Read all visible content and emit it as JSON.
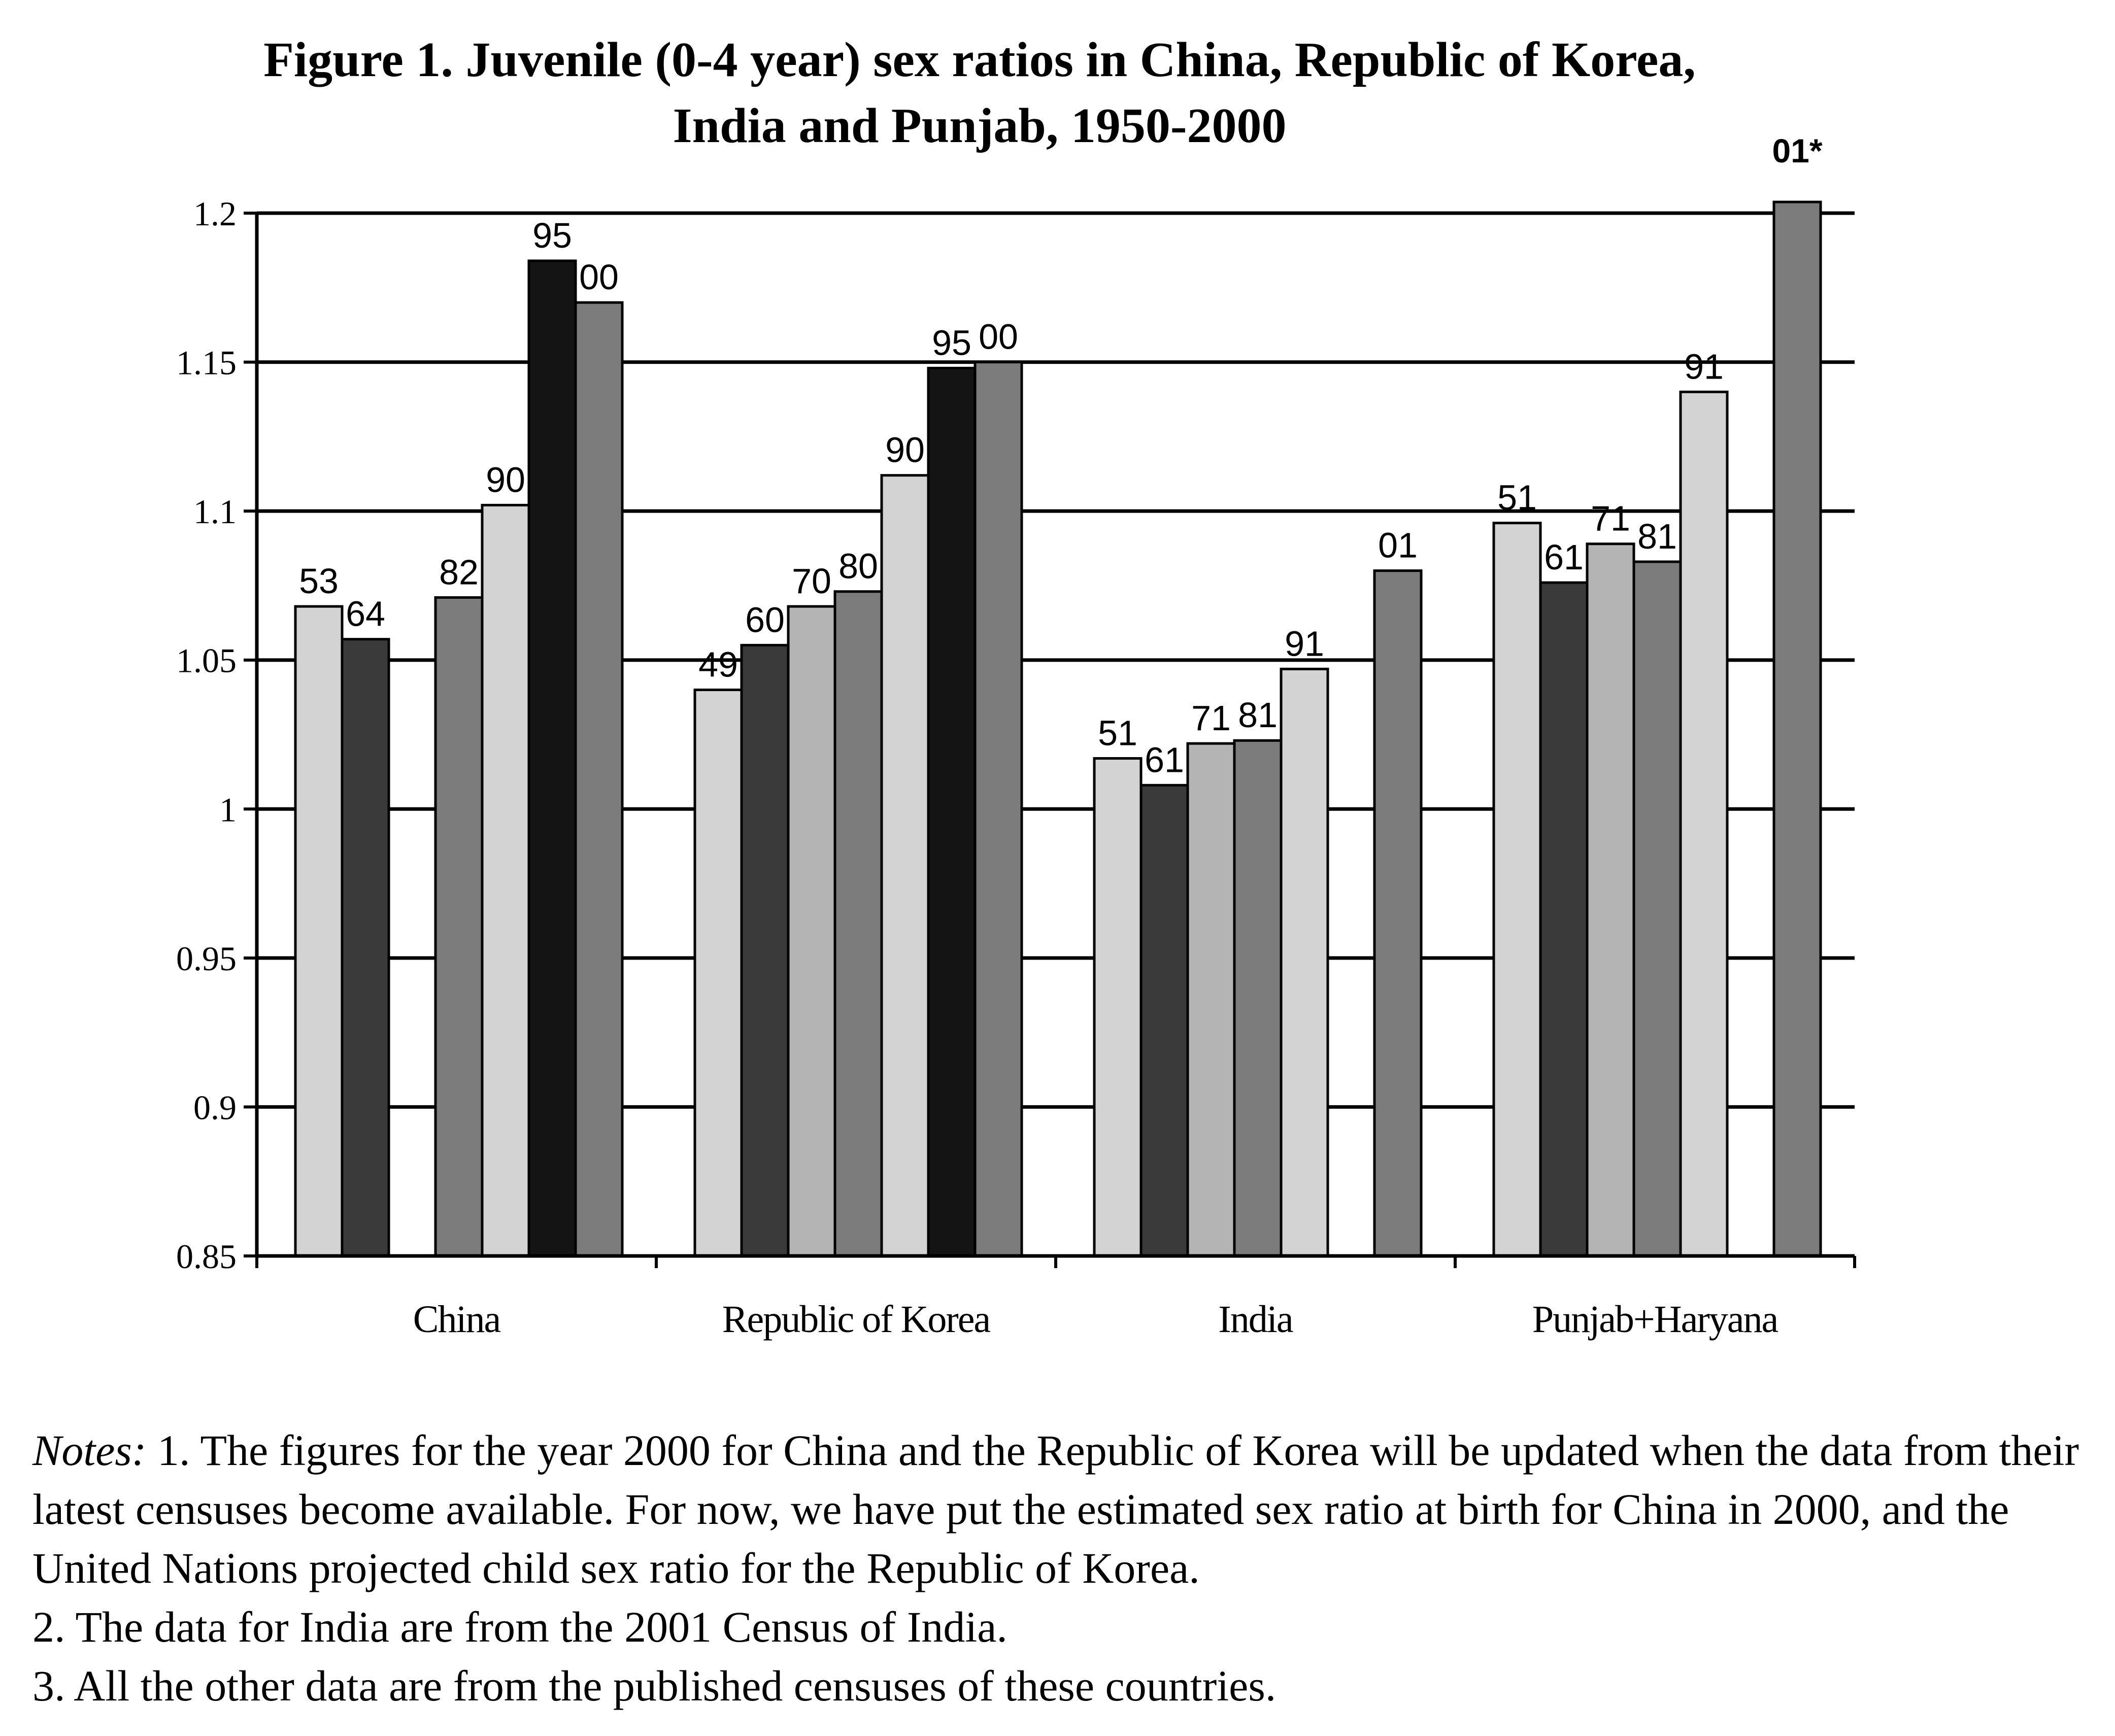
{
  "chart_data": {
    "type": "bar",
    "title_line1": "Figure 1.  Juvenile (0-4 year) sex ratios in China, Republic of Korea,",
    "title_line2": "India and Punjab, 1950-2000",
    "xlabel": "",
    "ylabel": "",
    "ylim": [
      0.85,
      1.2
    ],
    "yticks": [
      "1.2",
      "1.15",
      "1.1",
      "1.05",
      "1",
      "0.95",
      "0.9",
      "0.85"
    ],
    "ytick_values": [
      1.2,
      1.15,
      1.1,
      1.05,
      1.0,
      0.95,
      0.9,
      0.85
    ],
    "grid": true,
    "legend": "none",
    "groups": [
      {
        "category": "China",
        "bars": [
          {
            "label": "53",
            "value": 1.068,
            "color": "#d3d3d3"
          },
          {
            "label": "64",
            "value": 1.057,
            "color": "#3a3a3a"
          },
          {
            "label": "",
            "value": null,
            "color": null
          },
          {
            "label": "82",
            "value": 1.071,
            "color": "#7b7b7b"
          },
          {
            "label": "90",
            "value": 1.102,
            "color": "#d3d3d3"
          },
          {
            "label": "95",
            "value": 1.184,
            "color": "#141414"
          },
          {
            "label": "00",
            "value": 1.17,
            "color": "#7b7b7b"
          }
        ]
      },
      {
        "category": "Republic of Korea",
        "bars": [
          {
            "label": "49",
            "value": 1.04,
            "color": "#d3d3d3"
          },
          {
            "label": "60",
            "value": 1.055,
            "color": "#3a3a3a"
          },
          {
            "label": "70",
            "value": 1.068,
            "color": "#b4b4b4"
          },
          {
            "label": "80",
            "value": 1.073,
            "color": "#7b7b7b"
          },
          {
            "label": "90",
            "value": 1.112,
            "color": "#d3d3d3"
          },
          {
            "label": "95",
            "value": 1.148,
            "color": "#141414"
          },
          {
            "label": "00",
            "value": 1.15,
            "color": "#7b7b7b"
          }
        ]
      },
      {
        "category": "India",
        "bars": [
          {
            "label": "51",
            "value": 1.017,
            "color": "#d3d3d3"
          },
          {
            "label": "61",
            "value": 1.008,
            "color": "#3a3a3a"
          },
          {
            "label": "71",
            "value": 1.022,
            "color": "#b4b4b4"
          },
          {
            "label": "81",
            "value": 1.023,
            "color": "#7b7b7b"
          },
          {
            "label": "91",
            "value": 1.047,
            "color": "#d3d3d3"
          },
          {
            "label": "",
            "value": null,
            "color": null
          },
          {
            "label": "01",
            "value": 1.08,
            "color": "#7b7b7b"
          }
        ]
      },
      {
        "category": "Punjab+Haryana",
        "bars": [
          {
            "label": "51",
            "value": 1.096,
            "color": "#d3d3d3"
          },
          {
            "label": "61",
            "value": 1.076,
            "color": "#3a3a3a"
          },
          {
            "label": "71",
            "value": 1.089,
            "color": "#b4b4b4"
          },
          {
            "label": "81",
            "value": 1.083,
            "color": "#7b7b7b"
          },
          {
            "label": "91",
            "value": 1.14,
            "color": "#d3d3d3"
          },
          {
            "label": "",
            "value": null,
            "color": null
          },
          {
            "label": "01*",
            "value": 1.2,
            "color": "#7b7b7b",
            "exceeds_axis": true
          }
        ]
      }
    ]
  },
  "notes": {
    "lead": "Notes:",
    "line1": " 1. The figures for the year 2000 for China and the Republic of Korea will be updated when the data from their latest censuses become available. For now, we have put the estimated sex ratio at birth for China in 2000, and the United Nations projected child sex ratio for the Republic of Korea.",
    "line2": "2. The data for India are from the 2001 Census of India.",
    "line3": "3. All the other data are from the published censuses of these countries."
  }
}
